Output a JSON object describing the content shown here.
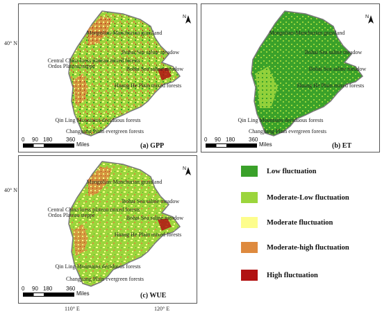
{
  "panels": [
    {
      "id": "gpp",
      "title": "(a) GPP",
      "fill_pattern": "mixed",
      "labels": [
        "Mongolian-Manchurian grassland",
        "Bohai Sea saline meadow",
        "Central China loess plateau mixed forests",
        "Ordos Plateau steppe",
        "Bohai Sea saline meadow",
        "Huang He Plain mixed forests",
        "Qin Ling Mountains deciduous forests",
        "Changjiang Plain evergreen forests"
      ]
    },
    {
      "id": "et",
      "title": "(b) ET",
      "fill_pattern": "green",
      "labels": [
        "Mongolian-Manchurian grassland",
        "Bohai Sea saline meadow",
        "Bohai Sea saline meadow",
        "Huang He Plain mixed forests",
        "Qin Ling Mountains deciduous forests",
        "Changjiang Plain evergreen forests"
      ]
    },
    {
      "id": "wue",
      "title": "(c) WUE",
      "fill_pattern": "mixed",
      "labels": [
        "Mongolian-Manchurian grassland",
        "Bohai Sea saline meadow",
        "Central China loess plateau mixed forests",
        "Ordos Plateau steppe",
        "Bohai Sea saline meadow",
        "Huang He Plain mixed forests",
        "Qin Ling Mountains deciduous forests",
        "Changjiang Plain evergreen forests"
      ]
    }
  ],
  "lat_labels": [
    "40° N",
    "40° N"
  ],
  "lon_labels": [
    "110° E",
    "120° E"
  ],
  "scale_bar": {
    "ticks": [
      "0",
      "90",
      "180",
      "360"
    ],
    "unit": "Miles"
  },
  "north_arrow": "N",
  "legend": [
    {
      "label": "Low fluctuation",
      "color": "#3aa12a"
    },
    {
      "label": "Moderate-Low fluctuation",
      "color": "#9bd53c"
    },
    {
      "label": "Moderate fluctuation",
      "color": "#fdfd8c"
    },
    {
      "label": "Moderate-high fluctuation",
      "color": "#de8a3e"
    },
    {
      "label": "High fluctuation",
      "color": "#b11212"
    }
  ]
}
